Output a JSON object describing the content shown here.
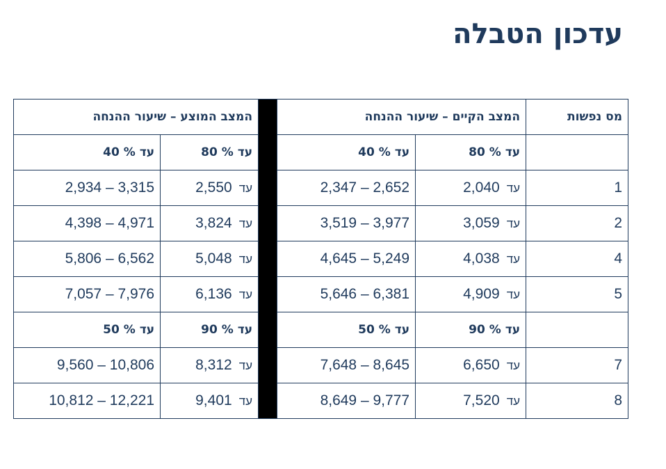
{
  "title": "עדכון הטבלה",
  "table": {
    "col_household": "מס נפשות",
    "group_current": "המצב הקיים – שיעור ההנחה",
    "group_proposed": "המצב המוצע – שיעור ההנחה",
    "prefix": "עד",
    "subheaders_a": {
      "current_high": "עד % 80",
      "current_low": "עד % 40",
      "proposed_high": "עד % 80",
      "proposed_low": "עד % 40"
    },
    "subheaders_b": {
      "current_high": "עד % 90",
      "current_low": "עד % 50",
      "proposed_high": "עד % 90",
      "proposed_low": "עד % 50"
    },
    "rows": [
      {
        "n": "1",
        "cur_high": "2,040",
        "cur_range": "2,347 – 2,652",
        "prop_high": "2,550",
        "prop_range": "2,934 – 3,315"
      },
      {
        "n": "2",
        "cur_high": "3,059",
        "cur_range": "3,519 – 3,977",
        "prop_high": "3,824",
        "prop_range": "4,398 – 4,971"
      },
      {
        "n": "4",
        "cur_high": "4,038",
        "cur_range": "4,645 – 5,249",
        "prop_high": "5,048",
        "prop_range": "5,806 – 6,562"
      },
      {
        "n": "5",
        "cur_high": "4,909",
        "cur_range": "5,646 – 6,381",
        "prop_high": "6,136",
        "prop_range": "7,057 – 7,976"
      },
      {
        "n": "7",
        "cur_high": "6,650",
        "cur_range": "7,648 – 8,645",
        "prop_high": "8,312",
        "prop_range": "9,560 – 10,806"
      },
      {
        "n": "8",
        "cur_high": "7,520",
        "cur_range": "8,649 – 9,777",
        "prop_high": "9,401",
        "prop_range": "10,812 – 12,221"
      }
    ]
  }
}
